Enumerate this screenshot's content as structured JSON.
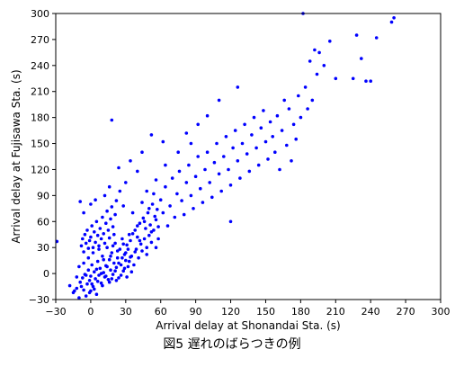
{
  "chart_data": {
    "type": "scatter",
    "xlabel": "Arrival delay at Shonandai Sta. (s)",
    "ylabel": "Arrival delay at Fujisawa Sta. (s)",
    "xlim": [
      -30,
      300
    ],
    "ylim": [
      -30,
      300
    ],
    "xticks": [
      -30,
      0,
      30,
      60,
      90,
      120,
      150,
      180,
      210,
      240,
      270,
      300
    ],
    "yticks": [
      -30,
      0,
      30,
      60,
      90,
      120,
      150,
      180,
      210,
      240,
      270,
      300
    ],
    "grid": false,
    "marker_color": "#0000ff",
    "series": [
      {
        "points": [
          [
            -29,
            37
          ],
          [
            -18,
            -14
          ],
          [
            -15,
            -22
          ],
          [
            -12,
            -17
          ],
          [
            -10,
            -28
          ],
          [
            -9,
            -10
          ],
          [
            -7,
            -5
          ],
          [
            -6,
            -19
          ],
          [
            -5,
            -1
          ],
          [
            -4,
            -26
          ],
          [
            -3,
            -12
          ],
          [
            -2,
            4
          ],
          [
            -1,
            -8
          ],
          [
            0,
            -20
          ],
          [
            0,
            -3
          ],
          [
            1,
            10
          ],
          [
            2,
            -15
          ],
          [
            3,
            2
          ],
          [
            4,
            -6
          ],
          [
            5,
            -24
          ],
          [
            6,
            14
          ],
          [
            7,
            -2
          ],
          [
            8,
            6
          ],
          [
            9,
            -11
          ],
          [
            10,
            20
          ],
          [
            11,
            1
          ],
          [
            12,
            -4
          ],
          [
            13,
            9
          ],
          [
            14,
            30
          ],
          [
            15,
            -7
          ],
          [
            16,
            16
          ],
          [
            17,
            4
          ],
          [
            18,
            24
          ],
          [
            19,
            -1
          ],
          [
            20,
            12
          ],
          [
            21,
            35
          ],
          [
            22,
            7
          ],
          [
            23,
            18
          ],
          [
            24,
            -5
          ],
          [
            25,
            28
          ],
          [
            26,
            10
          ],
          [
            27,
            40
          ],
          [
            28,
            3
          ],
          [
            29,
            22
          ],
          [
            30,
            15
          ],
          [
            31,
            33
          ],
          [
            32,
            8
          ],
          [
            33,
            45
          ],
          [
            34,
            19
          ],
          [
            35,
            2
          ],
          [
            -8,
            32
          ],
          [
            -7,
            40
          ],
          [
            -6,
            25
          ],
          [
            -5,
            45
          ],
          [
            -4,
            35
          ],
          [
            -3,
            50
          ],
          [
            -2,
            29
          ],
          [
            -1,
            38
          ],
          [
            0,
            42
          ],
          [
            1,
            55
          ],
          [
            2,
            30
          ],
          [
            3,
            48
          ],
          [
            4,
            36
          ],
          [
            5,
            60
          ],
          [
            6,
            44
          ],
          [
            7,
            32
          ],
          [
            8,
            52
          ],
          [
            9,
            40
          ],
          [
            10,
            65
          ],
          [
            11,
            46
          ],
          [
            12,
            35
          ],
          [
            13,
            58
          ],
          [
            14,
            72
          ],
          [
            15,
            50
          ],
          [
            16,
            41
          ],
          [
            17,
            63
          ],
          [
            18,
            77
          ],
          [
            19,
            54
          ],
          [
            20,
            45
          ],
          [
            21,
            68
          ],
          [
            -9,
            83
          ],
          [
            -6,
            70
          ],
          [
            0,
            80
          ],
          [
            4,
            85
          ],
          [
            12,
            90
          ],
          [
            16,
            100
          ],
          [
            18,
            177
          ],
          [
            22,
            84
          ],
          [
            25,
            95
          ],
          [
            28,
            78
          ],
          [
            36,
            70
          ],
          [
            38,
            25
          ],
          [
            40,
            55
          ],
          [
            42,
            38
          ],
          [
            44,
            82
          ],
          [
            46,
            60
          ],
          [
            48,
            30
          ],
          [
            50,
            75
          ],
          [
            52,
            48
          ],
          [
            54,
            92
          ],
          [
            56,
            62
          ],
          [
            58,
            40
          ],
          [
            60,
            85
          ],
          [
            62,
            70
          ],
          [
            64,
            100
          ],
          [
            66,
            55
          ],
          [
            68,
            78
          ],
          [
            70,
            110
          ],
          [
            72,
            65
          ],
          [
            74,
            92
          ],
          [
            76,
            118
          ],
          [
            78,
            84
          ],
          [
            80,
            68
          ],
          [
            82,
            105
          ],
          [
            84,
            125
          ],
          [
            86,
            90
          ],
          [
            88,
            75
          ],
          [
            90,
            112
          ],
          [
            92,
            135
          ],
          [
            94,
            98
          ],
          [
            96,
            82
          ],
          [
            98,
            120
          ],
          [
            100,
            140
          ],
          [
            102,
            105
          ],
          [
            104,
            88
          ],
          [
            106,
            128
          ],
          [
            108,
            150
          ],
          [
            110,
            115
          ],
          [
            112,
            95
          ],
          [
            114,
            135
          ],
          [
            116,
            158
          ],
          [
            118,
            120
          ],
          [
            120,
            102
          ],
          [
            122,
            145
          ],
          [
            124,
            165
          ],
          [
            126,
            130
          ],
          [
            128,
            110
          ],
          [
            130,
            150
          ],
          [
            132,
            172
          ],
          [
            134,
            138
          ],
          [
            136,
            118
          ],
          [
            138,
            160
          ],
          [
            140,
            180
          ],
          [
            142,
            145
          ],
          [
            144,
            125
          ],
          [
            146,
            168
          ],
          [
            148,
            188
          ],
          [
            150,
            152
          ],
          [
            152,
            132
          ],
          [
            154,
            175
          ],
          [
            156,
            158
          ],
          [
            158,
            140
          ],
          [
            160,
            182
          ],
          [
            162,
            120
          ],
          [
            164,
            165
          ],
          [
            166,
            200
          ],
          [
            168,
            148
          ],
          [
            170,
            190
          ],
          [
            172,
            130
          ],
          [
            174,
            172
          ],
          [
            176,
            155
          ],
          [
            178,
            205
          ],
          [
            180,
            180
          ],
          [
            182,
            300
          ],
          [
            184,
            215
          ],
          [
            186,
            190
          ],
          [
            188,
            245
          ],
          [
            190,
            200
          ],
          [
            192,
            258
          ],
          [
            194,
            230
          ],
          [
            196,
            255
          ],
          [
            200,
            240
          ],
          [
            205,
            268
          ],
          [
            210,
            225
          ],
          [
            225,
            225
          ],
          [
            228,
            275
          ],
          [
            232,
            248
          ],
          [
            236,
            222
          ],
          [
            240,
            222
          ],
          [
            245,
            272
          ],
          [
            258,
            290
          ],
          [
            260,
            295
          ],
          [
            86,
            150
          ],
          [
            92,
            172
          ],
          [
            110,
            200
          ],
          [
            120,
            60
          ],
          [
            126,
            215
          ],
          [
            100,
            182
          ],
          [
            75,
            140
          ],
          [
            64,
            125
          ],
          [
            56,
            108
          ],
          [
            48,
            95
          ],
          [
            40,
            118
          ],
          [
            52,
            160
          ],
          [
            34,
            130
          ],
          [
            30,
            105
          ],
          [
            24,
            122
          ],
          [
            44,
            140
          ],
          [
            62,
            152
          ],
          [
            82,
            162
          ],
          [
            -14,
            -20
          ],
          [
            -12,
            -4
          ],
          [
            -10,
            8
          ],
          [
            -8,
            -15
          ],
          [
            -6,
            12
          ],
          [
            -4,
            -2
          ],
          [
            -2,
            18
          ],
          [
            -1,
            -22
          ],
          [
            1,
            -12
          ],
          [
            2,
            24
          ],
          [
            3,
            -18
          ],
          [
            5,
            5
          ],
          [
            6,
            -9
          ],
          [
            7,
            28
          ],
          [
            9,
            0
          ],
          [
            10,
            -14
          ],
          [
            11,
            16
          ],
          [
            13,
            -3
          ],
          [
            14,
            8
          ],
          [
            16,
            -10
          ],
          [
            17,
            20
          ],
          [
            18,
            -6
          ],
          [
            19,
            32
          ],
          [
            21,
            3
          ],
          [
            22,
            -8
          ],
          [
            23,
            26
          ],
          [
            24,
            12
          ],
          [
            26,
            -2
          ],
          [
            27,
            18
          ],
          [
            28,
            34
          ],
          [
            29,
            6
          ],
          [
            30,
            24
          ],
          [
            31,
            -4
          ],
          [
            32,
            28
          ],
          [
            33,
            14
          ],
          [
            34,
            38
          ],
          [
            35,
            20
          ],
          [
            36,
            46
          ],
          [
            37,
            10
          ],
          [
            38,
            50
          ],
          [
            39,
            28
          ],
          [
            40,
            42
          ],
          [
            41,
            18
          ],
          [
            42,
            58
          ],
          [
            43,
            34
          ],
          [
            44,
            26
          ],
          [
            45,
            64
          ],
          [
            46,
            40
          ],
          [
            47,
            52
          ],
          [
            48,
            22
          ],
          [
            49,
            70
          ],
          [
            50,
            44
          ],
          [
            51,
            56
          ],
          [
            52,
            36
          ],
          [
            53,
            80
          ],
          [
            54,
            50
          ],
          [
            55,
            66
          ],
          [
            56,
            30
          ],
          [
            57,
            74
          ],
          [
            58,
            54
          ]
        ]
      }
    ]
  },
  "caption": "図5 遅れのばらつきの例"
}
